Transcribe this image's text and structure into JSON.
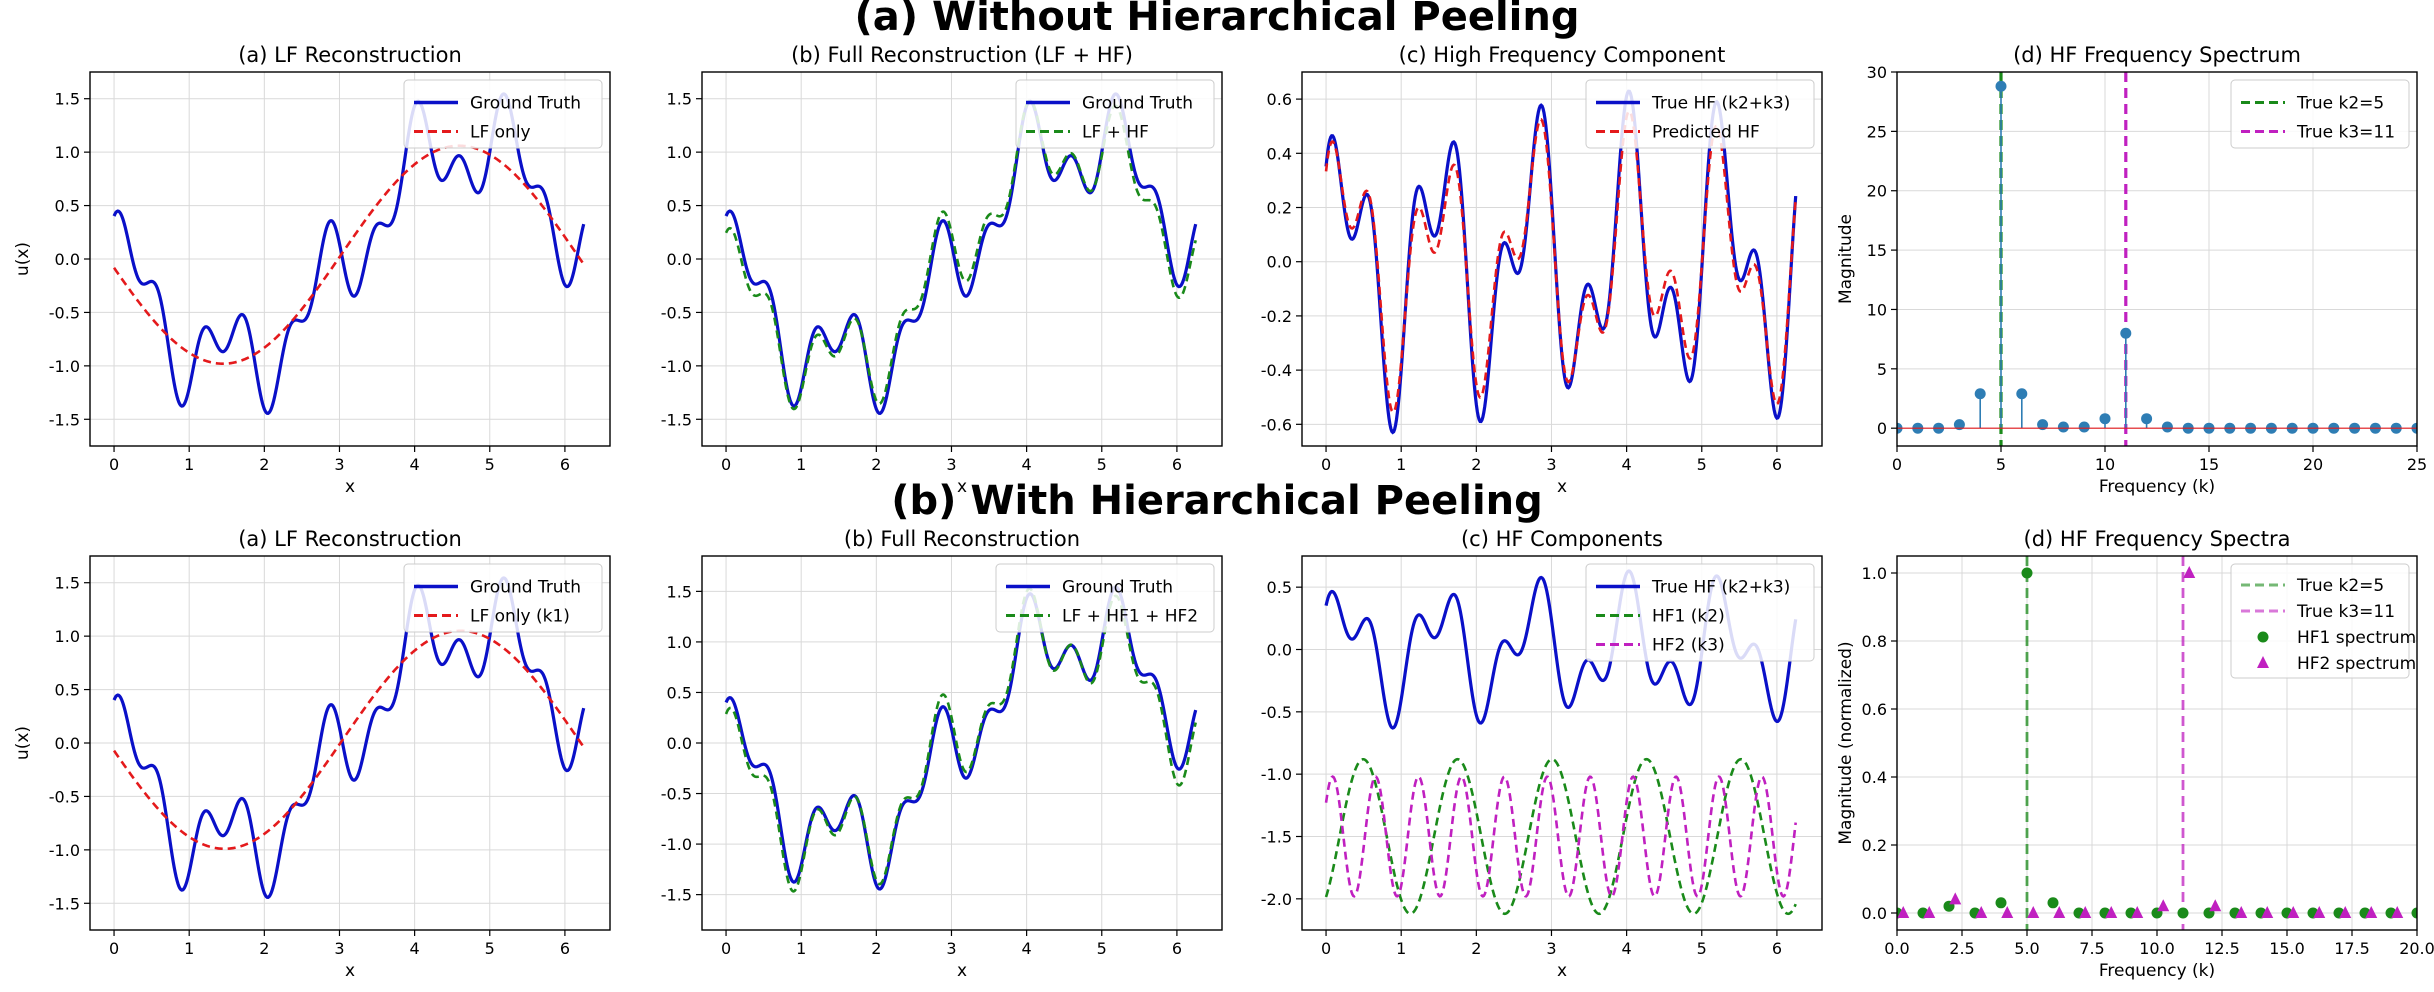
{
  "figure": {
    "title_a": "(a) Without Hierarchical Peeling",
    "title_b": "(b) With Hierarchical Peeling"
  },
  "colors": {
    "ground_truth": "#0a10c8",
    "lf": "#e41a1c",
    "full": "#1a8a1a",
    "hf1": "#1a8a1a",
    "hf2": "#c020c0",
    "stem": "#2e7db4",
    "k2_line": "#1a8a1a",
    "k3_line": "#c020c0"
  },
  "chart_data": [
    {
      "id": "a1",
      "type": "line",
      "title": "(a) LF Reconstruction",
      "xlabel": "x",
      "ylabel": "u(x)",
      "xlim": [
        -0.32,
        6.6
      ],
      "ylim": [
        -1.75,
        1.75
      ],
      "xticks": [
        0,
        1,
        2,
        3,
        4,
        5,
        6
      ],
      "yticks": [
        -1.5,
        -1.0,
        -0.5,
        0.0,
        0.5,
        1.0,
        1.5
      ],
      "legend": "top-right",
      "series": [
        {
          "name": "Ground Truth",
          "color": "#0a10c8",
          "dash": "",
          "gen": "gt",
          "offset": 0
        },
        {
          "name": "LF only",
          "color": "#e41a1c",
          "dash": "8,5",
          "gen": "lfA",
          "offset": 0
        }
      ]
    },
    {
      "id": "a2",
      "type": "line",
      "title": "(b) Full Reconstruction (LF + HF)",
      "xlabel": "x",
      "ylabel": "",
      "xlim": [
        -0.32,
        6.6
      ],
      "ylim": [
        -1.75,
        1.75
      ],
      "xticks": [
        0,
        1,
        2,
        3,
        4,
        5,
        6
      ],
      "yticks": [
        -1.5,
        -1.0,
        -0.5,
        0.0,
        0.5,
        1.0,
        1.5
      ],
      "legend": "top-right",
      "series": [
        {
          "name": "Ground Truth",
          "color": "#0a10c8",
          "dash": "",
          "gen": "gt",
          "offset": 0
        },
        {
          "name": "LF + HF",
          "color": "#1a8a1a",
          "dash": "8,5",
          "gen": "fullA",
          "offset": 0
        }
      ]
    },
    {
      "id": "a3",
      "type": "line",
      "title": "(c) High Frequency Component",
      "xlabel": "x",
      "ylabel": "",
      "xlim": [
        -0.32,
        6.6
      ],
      "ylim": [
        -0.68,
        0.7
      ],
      "xticks": [
        0,
        1,
        2,
        3,
        4,
        5,
        6
      ],
      "yticks": [
        -0.6,
        -0.4,
        -0.2,
        0.0,
        0.2,
        0.4,
        0.6
      ],
      "legend": "top-right",
      "series": [
        {
          "name": "True HF (k2+k3)",
          "color": "#0a10c8",
          "dash": "",
          "gen": "hf",
          "offset": 0
        },
        {
          "name": "Predicted HF",
          "color": "#e41a1c",
          "dash": "8,5",
          "gen": "hfPredA",
          "offset": 0
        }
      ]
    },
    {
      "id": "a4",
      "type": "stem",
      "title": "(d) HF Frequency Spectrum",
      "xlabel": "Frequency (k)",
      "ylabel": "Magnitude",
      "xlim": [
        0,
        25
      ],
      "ylim": [
        -1.5,
        30
      ],
      "xticks": [
        0,
        5,
        10,
        15,
        20,
        25
      ],
      "yticks": [
        0,
        5,
        10,
        15,
        20,
        25,
        30
      ],
      "legend": "top-right",
      "stems": {
        "k": [
          0,
          1,
          2,
          3,
          4,
          5,
          6,
          7,
          8,
          9,
          10,
          11,
          12,
          13,
          14,
          15,
          16,
          17,
          18,
          19,
          20,
          21,
          22,
          23,
          24,
          25
        ],
        "values": [
          0,
          0,
          0,
          0.3,
          2.9,
          28.8,
          2.9,
          0.3,
          0.1,
          0.1,
          0.8,
          8.0,
          0.8,
          0.1,
          0,
          0,
          0,
          0,
          0,
          0,
          0,
          0,
          0,
          0,
          0,
          0
        ],
        "color": "#2e7db4"
      },
      "vlines": [
        {
          "name": "True k2=5",
          "x": 5,
          "color": "#1a8a1a"
        },
        {
          "name": "True k3=11",
          "x": 11,
          "color": "#c020c0"
        }
      ]
    },
    {
      "id": "b1",
      "type": "line",
      "title": "(a) LF Reconstruction",
      "xlabel": "x",
      "ylabel": "u(x)",
      "xlim": [
        -0.32,
        6.6
      ],
      "ylim": [
        -1.75,
        1.75
      ],
      "xticks": [
        0,
        1,
        2,
        3,
        4,
        5,
        6
      ],
      "yticks": [
        -1.5,
        -1.0,
        -0.5,
        0.0,
        0.5,
        1.0,
        1.5
      ],
      "legend": "top-right",
      "series": [
        {
          "name": "Ground Truth",
          "color": "#0a10c8",
          "dash": "",
          "gen": "gt",
          "offset": 0
        },
        {
          "name": "LF only (k1)",
          "color": "#e41a1c",
          "dash": "8,5",
          "gen": "lfB",
          "offset": 0
        }
      ]
    },
    {
      "id": "b2",
      "type": "line",
      "title": "(b) Full Reconstruction",
      "xlabel": "x",
      "ylabel": "",
      "xlim": [
        -0.32,
        6.6
      ],
      "ylim": [
        -1.85,
        1.85
      ],
      "xticks": [
        0,
        1,
        2,
        3,
        4,
        5,
        6
      ],
      "yticks": [
        -1.5,
        -1.0,
        -0.5,
        0.0,
        0.5,
        1.0,
        1.5
      ],
      "legend": "top-right",
      "series": [
        {
          "name": "Ground Truth",
          "color": "#0a10c8",
          "dash": "",
          "gen": "gt",
          "offset": 0
        },
        {
          "name": "LF + HF1 + HF2",
          "color": "#1a8a1a",
          "dash": "8,5",
          "gen": "fullB",
          "offset": 0
        }
      ]
    },
    {
      "id": "b3",
      "type": "line",
      "title": "(c) HF Components",
      "xlabel": "x",
      "ylabel": "",
      "xlim": [
        -0.32,
        6.6
      ],
      "ylim": [
        -2.25,
        0.75
      ],
      "xticks": [
        0,
        1,
        2,
        3,
        4,
        5,
        6
      ],
      "yticks": [
        -2.0,
        -1.5,
        -1.0,
        -0.5,
        0.0,
        0.5
      ],
      "legend": "top-right",
      "series": [
        {
          "name": "True HF (k2+k3)",
          "color": "#0a10c8",
          "dash": "",
          "gen": "hf",
          "offset": 0
        },
        {
          "name": "HF1 (k2)",
          "color": "#1a8a1a",
          "dash": "8,5",
          "gen": "hf1",
          "offset": -1.5
        },
        {
          "name": "HF2 (k3)",
          "color": "#c020c0",
          "dash": "8,5",
          "gen": "hf2",
          "offset": -1.5
        }
      ]
    },
    {
      "id": "b4",
      "type": "markers",
      "title": "(d) HF Frequency Spectra",
      "xlabel": "Frequency (k)",
      "ylabel": "Magnitude (normalized)",
      "xlim": [
        0,
        20
      ],
      "ylim": [
        -0.05,
        1.05
      ],
      "xticks": [
        0.0,
        2.5,
        5.0,
        7.5,
        10.0,
        12.5,
        15.0,
        17.5,
        20.0
      ],
      "yticks": [
        0.0,
        0.2,
        0.4,
        0.6,
        0.8,
        1.0
      ],
      "legend": "top-right",
      "vlines": [
        {
          "name": "True k2=5",
          "x": 5,
          "color": "#1a8a1a"
        },
        {
          "name": "True k3=11",
          "x": 11,
          "color": "#c020c0"
        }
      ],
      "marker_series": [
        {
          "name": "HF1 spectrum",
          "marker": "circle",
          "color": "#1a8a1a",
          "k": [
            0,
            1,
            2,
            3,
            4,
            5,
            6,
            7,
            8,
            9,
            10,
            11,
            12,
            13,
            14,
            15,
            16,
            17,
            18,
            19,
            20
          ],
          "values": [
            0,
            0,
            0.02,
            0,
            0.03,
            1.0,
            0.03,
            0,
            0,
            0,
            0,
            0,
            0,
            0,
            0,
            0,
            0,
            0,
            0,
            0,
            0
          ]
        },
        {
          "name": "HF2 spectrum",
          "marker": "triangle",
          "color": "#c020c0",
          "k": [
            0,
            1,
            2,
            3,
            4,
            5,
            6,
            7,
            8,
            9,
            10,
            11,
            12,
            13,
            14,
            15,
            16,
            17,
            18,
            19,
            20
          ],
          "values": [
            0,
            0,
            0.04,
            0,
            0,
            0,
            0,
            0,
            0,
            0,
            0.02,
            1.0,
            0.02,
            0,
            0,
            0,
            0,
            0,
            0,
            0,
            0
          ]
        }
      ]
    }
  ]
}
